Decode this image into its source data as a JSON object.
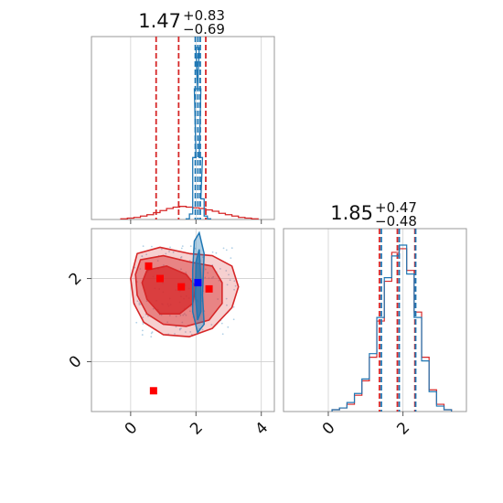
{
  "chart_data": [
    {
      "type": "histogram",
      "panel": "marginal-param-1",
      "title": {
        "value": "1.47",
        "upper": "+0.83",
        "lower": "−0.69"
      },
      "xlim": [
        -1.2,
        4.4
      ],
      "grid": true,
      "ticks_visible": [
        0,
        2,
        4
      ],
      "series": [
        {
          "name": "",
          "color": "#d62728",
          "x": [
            -0.2,
            0.0,
            0.2,
            0.4,
            0.6,
            0.8,
            1.0,
            1.2,
            1.4,
            1.6,
            1.8,
            2.0,
            2.2,
            2.4,
            2.6,
            2.8,
            3.0,
            3.2,
            3.4,
            3.6,
            3.8
          ],
          "density": [
            0.01,
            0.02,
            0.03,
            0.05,
            0.07,
            0.1,
            0.13,
            0.16,
            0.18,
            0.19,
            0.18,
            0.17,
            0.16,
            0.14,
            0.12,
            0.09,
            0.07,
            0.05,
            0.03,
            0.02,
            0.01
          ],
          "quantiles": [
            0.78,
            1.47,
            2.3
          ]
        },
        {
          "name": "",
          "color": "#1f77b4",
          "x": [
            1.75,
            1.85,
            1.95,
            2.0,
            2.05,
            2.1,
            2.15,
            2.2,
            2.3,
            2.4
          ],
          "density": [
            0.01,
            0.08,
            0.9,
            1.9,
            2.5,
            1.9,
            0.9,
            0.3,
            0.05,
            0.01
          ],
          "quantiles": [
            1.98,
            2.06,
            2.13
          ]
        }
      ]
    },
    {
      "type": "contour",
      "panel": "joint-param-1-param-2",
      "xlim": [
        -1.2,
        4.4
      ],
      "ylim": [
        -1.2,
        3.2
      ],
      "grid": true,
      "xticks": [
        0,
        2,
        4
      ],
      "yticks": [
        0,
        2
      ],
      "red_contours": [
        {
          "level": "outer",
          "points": [
            [
              0.2,
              2.6
            ],
            [
              0.9,
              2.75
            ],
            [
              1.8,
              2.6
            ],
            [
              2.5,
              2.55
            ],
            [
              3.1,
              2.3
            ],
            [
              3.3,
              1.8
            ],
            [
              3.1,
              1.3
            ],
            [
              2.5,
              0.8
            ],
            [
              1.8,
              0.6
            ],
            [
              1.0,
              0.65
            ],
            [
              0.4,
              0.95
            ],
            [
              0.1,
              1.4
            ],
            [
              0.0,
              2.0
            ]
          ]
        },
        {
          "level": "middle",
          "points": [
            [
              0.3,
              2.45
            ],
            [
              1.0,
              2.55
            ],
            [
              1.8,
              2.4
            ],
            [
              2.5,
              2.3
            ],
            [
              2.8,
              1.9
            ],
            [
              2.8,
              1.4
            ],
            [
              2.4,
              1.0
            ],
            [
              1.7,
              0.85
            ],
            [
              1.0,
              0.9
            ],
            [
              0.5,
              1.15
            ],
            [
              0.2,
              1.6
            ],
            [
              0.15,
              2.1
            ]
          ]
        },
        {
          "level": "inner",
          "points": [
            [
              0.5,
              2.2
            ],
            [
              1.1,
              2.3
            ],
            [
              1.7,
              2.1
            ],
            [
              2.0,
              1.8
            ],
            [
              1.9,
              1.4
            ],
            [
              1.5,
              1.15
            ],
            [
              0.9,
              1.15
            ],
            [
              0.5,
              1.5
            ],
            [
              0.35,
              1.9
            ]
          ]
        }
      ],
      "blue_contours": [
        {
          "level": "outer",
          "points": [
            [
              2.1,
              3.1
            ],
            [
              2.25,
              2.6
            ],
            [
              2.2,
              1.6
            ],
            [
              2.25,
              0.9
            ],
            [
              2.05,
              0.7
            ],
            [
              1.9,
              1.2
            ],
            [
              1.9,
              2.2
            ],
            [
              1.95,
              2.9
            ]
          ]
        },
        {
          "level": "inner",
          "points": [
            [
              2.1,
              2.7
            ],
            [
              2.15,
              2.0
            ],
            [
              2.15,
              1.2
            ],
            [
              2.05,
              1.0
            ],
            [
              1.98,
              1.6
            ],
            [
              2.0,
              2.4
            ]
          ]
        }
      ],
      "red_markers": [
        [
          0.55,
          2.3
        ],
        [
          0.9,
          2.0
        ],
        [
          1.55,
          1.8
        ],
        [
          2.4,
          1.75
        ],
        [
          0.7,
          -0.7
        ]
      ],
      "blue_marker": [
        2.06,
        1.9
      ],
      "scatter_color": "#9ec4e0"
    },
    {
      "type": "histogram",
      "panel": "marginal-param-2",
      "title": {
        "value": "1.85",
        "upper": "+0.47",
        "lower": "−0.48"
      },
      "xlim": [
        -1.2,
        3.7
      ],
      "grid": true,
      "xticks": [
        0,
        2
      ],
      "series": [
        {
          "name": "",
          "color": "#d62728",
          "x": [
            0.2,
            0.4,
            0.6,
            0.8,
            1.0,
            1.2,
            1.4,
            1.6,
            1.8,
            2.0,
            2.2,
            2.4,
            2.6,
            2.8,
            3.0,
            3.2
          ],
          "density": [
            0.01,
            0.02,
            0.04,
            0.09,
            0.17,
            0.3,
            0.5,
            0.72,
            0.88,
            0.9,
            0.78,
            0.55,
            0.3,
            0.12,
            0.04,
            0.01
          ],
          "quantiles": [
            1.37,
            1.85,
            2.32
          ]
        },
        {
          "name": "",
          "color": "#1f77b4",
          "x": [
            0.2,
            0.4,
            0.6,
            0.8,
            1.0,
            1.2,
            1.4,
            1.6,
            1.8,
            2.0,
            2.2,
            2.4,
            2.6,
            2.8,
            3.0,
            3.2
          ],
          "density": [
            0.01,
            0.02,
            0.05,
            0.1,
            0.18,
            0.32,
            0.52,
            0.74,
            0.86,
            0.92,
            0.76,
            0.52,
            0.28,
            0.11,
            0.03,
            0.01
          ],
          "quantiles": [
            1.42,
            1.9,
            2.34
          ]
        }
      ]
    }
  ]
}
